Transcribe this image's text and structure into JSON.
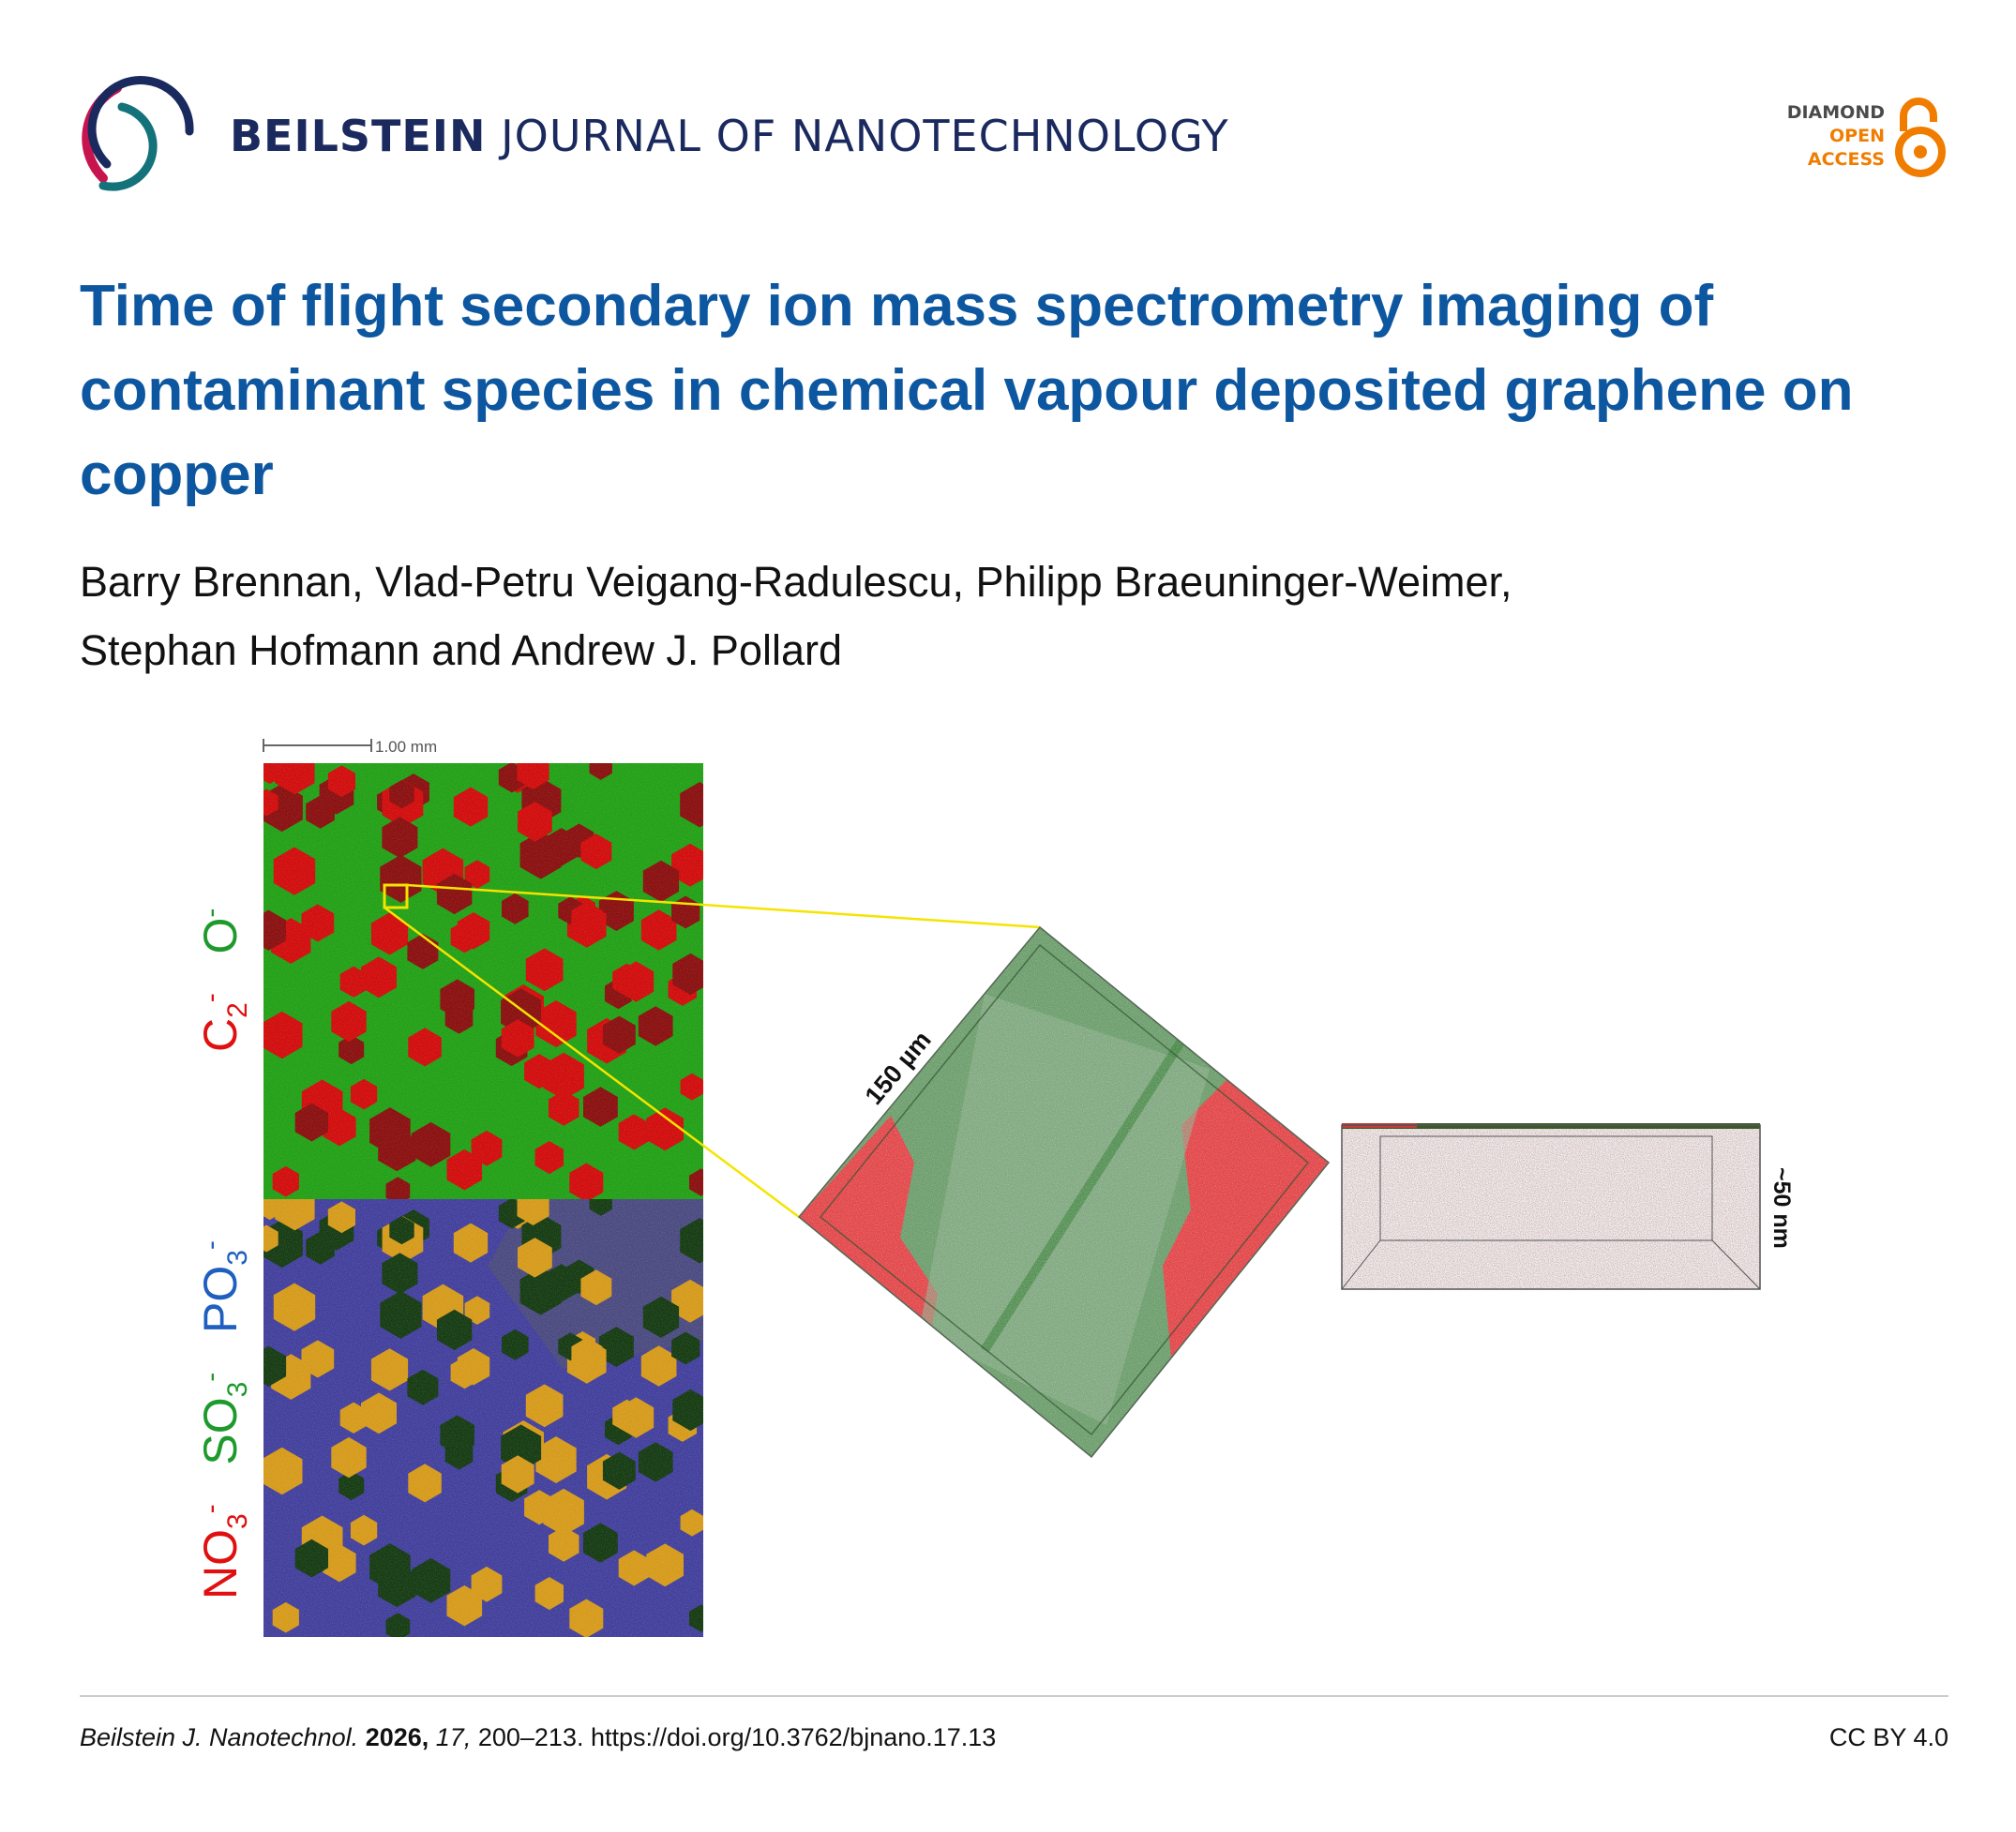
{
  "header": {
    "journal_bold": "BEILSTEIN",
    "journal_rest": "JOURNAL OF NANOTECHNOLOGY",
    "logo_icon": "beilstein-rings-logo",
    "open_access": {
      "line1": "DIAMOND",
      "line2": "OPEN",
      "line3": "ACCESS",
      "icon": "open-lock-icon",
      "color": "#f07d00",
      "dark": "#4a4a4a"
    }
  },
  "article": {
    "title": "Time of flight secondary ion mass spectrometry imaging of contaminant species in chemical vapour deposited graphene on copper",
    "authors_line1": "Barry Brennan, Vlad-Petru Veigang-Radulescu, Philipp Braeuninger-Weimer,",
    "authors_line2": "Stephan Hofmann and Andrew J. Pollard"
  },
  "figure": {
    "scale_bar": "1.00 mm",
    "top_label": {
      "c2": "C",
      "c2_sub": "2",
      "c2_sup": "-",
      "o": "O",
      "o_sup": "-"
    },
    "bottom_label": {
      "no3": "NO",
      "so3": "SO",
      "po3": "PO",
      "sub": "3",
      "sup": "-"
    },
    "diamond_label": "150 µm",
    "depth_label": "~50 nm",
    "colors": {
      "red": "#d40000",
      "green": "#2fa02f",
      "blue": "#1f5fbf",
      "yellow": "#f5e400"
    }
  },
  "footer": {
    "journal": "Beilstein J. Nanotechnol.",
    "year": "2026,",
    "volume": "17,",
    "pages": "200–213.",
    "doi": "https://doi.org/10.3762/bjnano.17.13",
    "license": "CC BY 4.0"
  }
}
